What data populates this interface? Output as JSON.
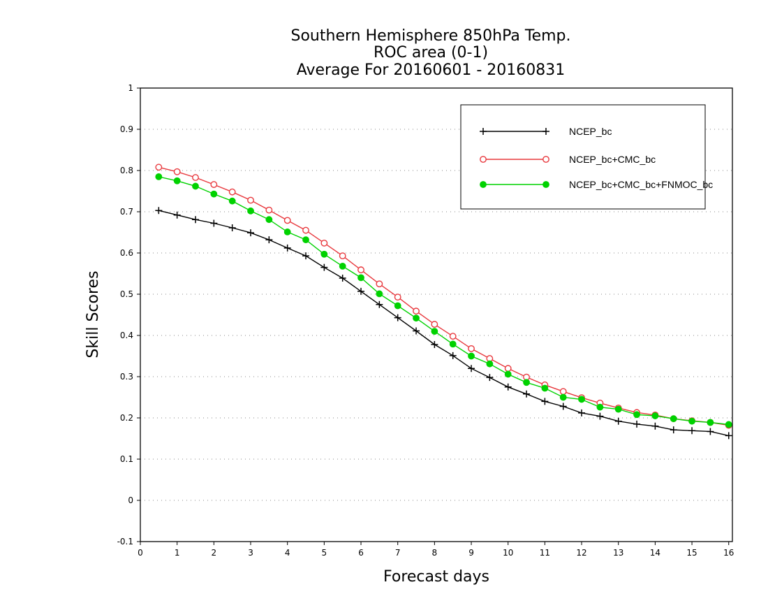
{
  "chart_data": {
    "type": "line",
    "title": [
      "Southern Hemisphere 850hPa Temp.",
      "ROC area (0-1)",
      "Average For 20160601 - 20160831"
    ],
    "xlabel": "Forecast days",
    "ylabel": "Skill Scores",
    "xlim": [
      0,
      16.1
    ],
    "ylim": [
      -0.1,
      1
    ],
    "x_ticks": [
      0,
      1,
      2,
      3,
      4,
      5,
      6,
      7,
      8,
      9,
      10,
      11,
      12,
      13,
      14,
      15,
      16
    ],
    "y_ticks": [
      -0.1,
      0,
      0.1,
      0.2,
      0.3,
      0.4,
      0.5,
      0.6,
      0.7,
      0.8,
      0.9,
      1
    ],
    "y_tick_labels": [
      "-0.1",
      "0",
      "0.1",
      "0.2",
      "0.3",
      "0.4",
      "0.5",
      "0.6",
      "0.7",
      "0.8",
      "0.9",
      "1"
    ],
    "grid": "horizontal dotted",
    "legend_position": "top-right",
    "x": [
      0.5,
      1,
      1.5,
      2,
      2.5,
      3,
      3.5,
      4,
      4.5,
      5,
      5.5,
      6,
      6.5,
      7,
      7.5,
      8,
      8.5,
      9,
      9.5,
      10,
      10.5,
      11,
      11.5,
      12,
      12.5,
      13,
      13.5,
      14,
      14.5,
      15,
      15.5,
      16
    ],
    "series": [
      {
        "name": "NCEP_bc",
        "color": "#000000",
        "marker": "plus",
        "values": [
          0.703,
          0.692,
          0.681,
          0.672,
          0.661,
          0.649,
          0.632,
          0.612,
          0.593,
          0.565,
          0.539,
          0.507,
          0.475,
          0.443,
          0.411,
          0.378,
          0.351,
          0.32,
          0.298,
          0.275,
          0.258,
          0.24,
          0.228,
          0.212,
          0.204,
          0.192,
          0.185,
          0.18,
          0.171,
          0.169,
          0.167,
          0.157
        ]
      },
      {
        "name": "NCEP_bc+CMC_bc",
        "color": "#e8383d",
        "marker": "open-circle",
        "values": [
          0.808,
          0.797,
          0.783,
          0.766,
          0.748,
          0.728,
          0.704,
          0.679,
          0.655,
          0.624,
          0.593,
          0.559,
          0.525,
          0.493,
          0.459,
          0.427,
          0.398,
          0.368,
          0.344,
          0.32,
          0.299,
          0.28,
          0.264,
          0.249,
          0.236,
          0.224,
          0.213,
          0.207,
          0.198,
          0.193,
          0.189,
          0.182
        ]
      },
      {
        "name": "NCEP_bc+CMC_bc+FNMOC_bc",
        "color": "#00d200",
        "marker": "filled-circle",
        "values": [
          0.785,
          0.775,
          0.762,
          0.743,
          0.726,
          0.702,
          0.681,
          0.651,
          0.632,
          0.597,
          0.568,
          0.54,
          0.501,
          0.472,
          0.442,
          0.41,
          0.379,
          0.35,
          0.331,
          0.306,
          0.286,
          0.272,
          0.25,
          0.245,
          0.226,
          0.221,
          0.208,
          0.205,
          0.198,
          0.192,
          0.189,
          0.184
        ]
      }
    ]
  }
}
